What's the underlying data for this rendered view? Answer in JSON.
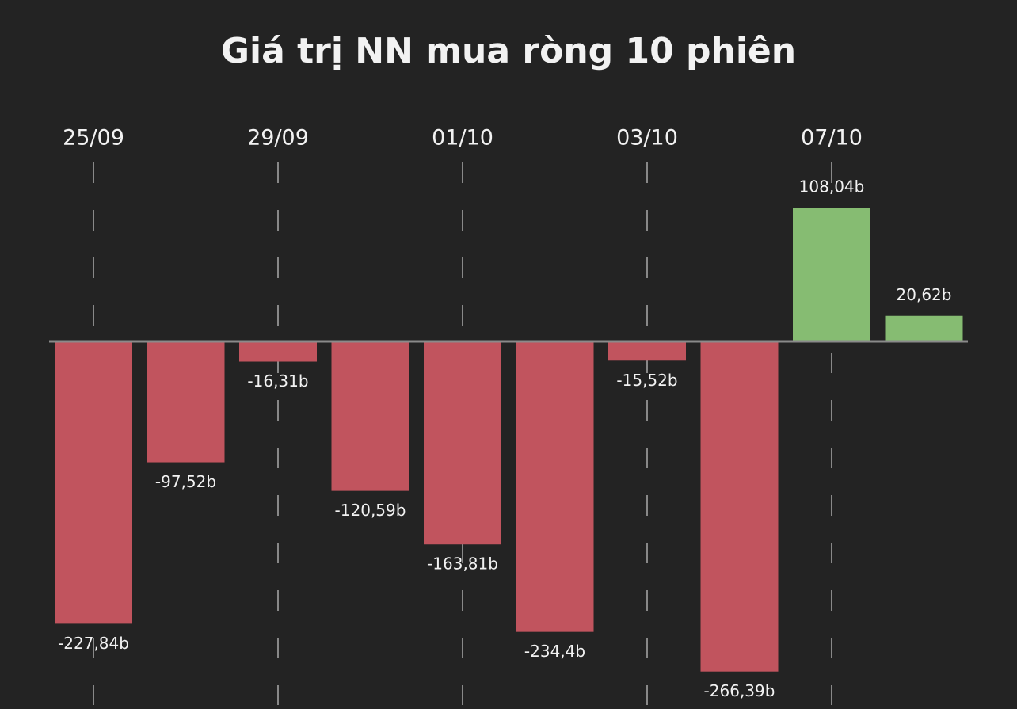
{
  "chart_data": {
    "type": "bar",
    "title": "Giá trị NN mua ròng 10 phiên",
    "categories": [
      "25/09",
      null,
      "29/09",
      null,
      "01/10",
      null,
      "03/10",
      null,
      "07/10",
      null
    ],
    "values": [
      -227.84,
      -97.52,
      -16.31,
      -120.59,
      -163.81,
      -234.4,
      -15.52,
      -266.39,
      108.04,
      20.62
    ],
    "value_labels": [
      "-227,84b",
      "-97,52b",
      "-16,31b",
      "-120,59b",
      "-163,81b",
      "-234,4b",
      "-15,52b",
      "-266,39b",
      "108,04b",
      "20,62b"
    ],
    "positive_color": "#86bc72",
    "negative_color": "#c1545e"
  }
}
